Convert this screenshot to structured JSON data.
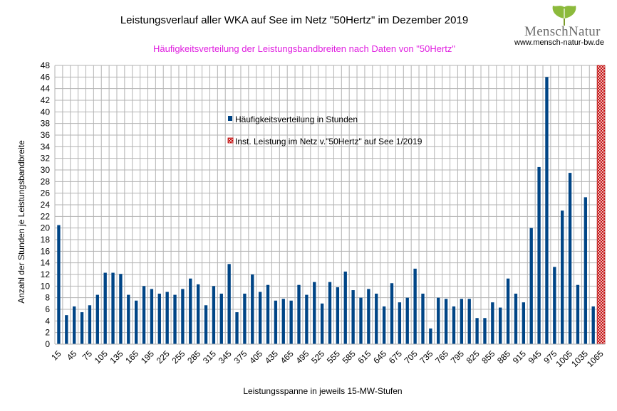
{
  "chart_data": {
    "type": "bar",
    "title": "Leistungsverlauf aller WKA auf See im Netz \"50Hertz\" im Dezember 2019",
    "subtitle": "Häufigkeitsverteilung der Leistungsbandbreiten nach Daten von \"50Hertz\"",
    "xlabel": "Leistungsspanne in jeweils 15-MW-Stufen",
    "ylabel": "Anzahl der Stunden je Leistungsbandbreite",
    "ylim": [
      0,
      48
    ],
    "y_ticks": [
      0,
      2,
      4,
      6,
      8,
      10,
      12,
      14,
      16,
      18,
      20,
      22,
      24,
      26,
      28,
      30,
      32,
      34,
      36,
      38,
      40,
      42,
      44,
      46,
      48
    ],
    "x_tick_labels": [
      "15",
      "45",
      "75",
      "105",
      "135",
      "165",
      "195",
      "225",
      "255",
      "285",
      "315",
      "345",
      "375",
      "405",
      "435",
      "465",
      "495",
      "525",
      "555",
      "585",
      "615",
      "645",
      "675",
      "705",
      "735",
      "765",
      "795",
      "825",
      "855",
      "885",
      "915",
      "945",
      "975",
      "1005",
      "1035",
      "1065"
    ],
    "grid": true,
    "legend_position": "center-left",
    "series": [
      {
        "name": "Häufigkeitsverteilung in Stunden",
        "color": "#004586",
        "categories": [
          "15",
          "30",
          "45",
          "60",
          "75",
          "90",
          "105",
          "120",
          "135",
          "150",
          "165",
          "180",
          "195",
          "210",
          "225",
          "240",
          "255",
          "270",
          "285",
          "300",
          "315",
          "330",
          "345",
          "360",
          "375",
          "390",
          "405",
          "420",
          "435",
          "450",
          "465",
          "480",
          "495",
          "510",
          "525",
          "540",
          "555",
          "570",
          "585",
          "600",
          "615",
          "630",
          "645",
          "660",
          "675",
          "690",
          "705",
          "720",
          "735",
          "750",
          "765",
          "780",
          "795",
          "810",
          "825",
          "840",
          "855",
          "870",
          "885",
          "900",
          "915",
          "930",
          "945",
          "960",
          "975",
          "990",
          "1005",
          "1020",
          "1035",
          "1050",
          "1065"
        ],
        "values": [
          20.5,
          5,
          6.5,
          5.5,
          6.7,
          8.5,
          12.3,
          12.3,
          12.1,
          8.5,
          7.5,
          10,
          9.5,
          8.7,
          9,
          8.5,
          9.5,
          11.3,
          10.3,
          6.7,
          10,
          8.7,
          13.8,
          5.5,
          8.7,
          12,
          9,
          10.2,
          7.5,
          7.8,
          7.5,
          10.2,
          8.5,
          10.7,
          7,
          10.7,
          9.8,
          12.5,
          9.3,
          8,
          9.5,
          8.7,
          6.5,
          10.5,
          7.2,
          8,
          13,
          8.7,
          2.7,
          8,
          7.8,
          6.5,
          7.8,
          7.8,
          4.5,
          4.5,
          7.2,
          6.3,
          11.3,
          8.7,
          7.2,
          20,
          30.5,
          46,
          13.3,
          23,
          29.5,
          10.2,
          25.3,
          6.5,
          null
        ]
      },
      {
        "name": "Inst. Leistung im Netz v.\"50Hertz\" auf See 1/2019",
        "color": "#c00000",
        "value": 1065
      }
    ]
  },
  "logo": {
    "text": "MenschNatur",
    "url": "www.mensch-natur-bw.de"
  }
}
